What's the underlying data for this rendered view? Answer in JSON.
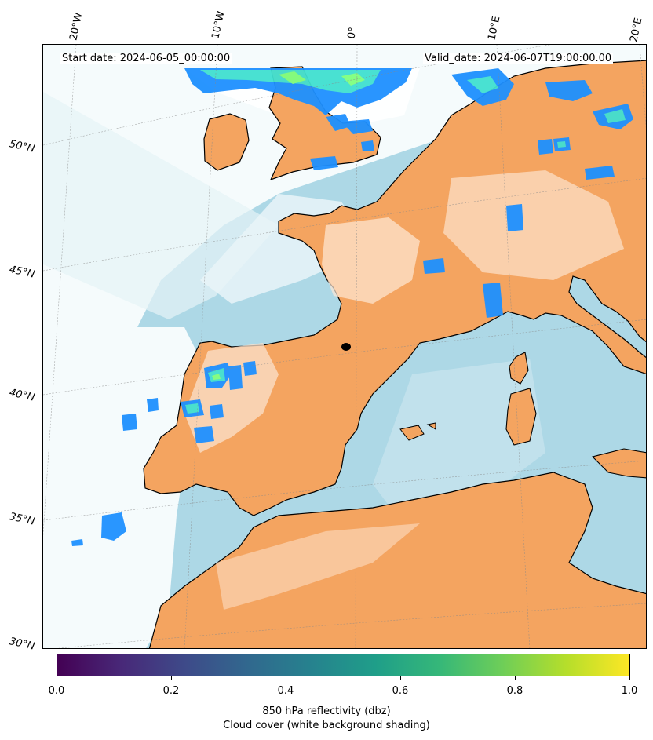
{
  "header": {
    "start_date": "Start date: 2024-06-05_00:00:00",
    "valid_date": "Valid_date: 2024-06-07T19:00:00.00"
  },
  "longitude_labels": [
    "20°W",
    "10°W",
    "0°",
    "10°E",
    "20°E"
  ],
  "latitude_labels": [
    "50°N",
    "45°N",
    "40°N",
    "35°N",
    "30°N"
  ],
  "colorbar": {
    "colormap": "viridis",
    "ticks": [
      "0.0",
      "0.2",
      "0.4",
      "0.6",
      "0.8",
      "1.0"
    ],
    "label_line1": "850 hPa reflectivity (dbz)",
    "label_line2": "Cloud cover (white background shading)"
  },
  "colors": {
    "land": "#f4a460",
    "sea": "#add8e6",
    "cloud": "#ffffff",
    "reflectivity_low": "#1e90ff",
    "reflectivity_mid": "#40e0d0",
    "reflectivity_high": "#7fff7f",
    "coastline": "#000000"
  }
}
